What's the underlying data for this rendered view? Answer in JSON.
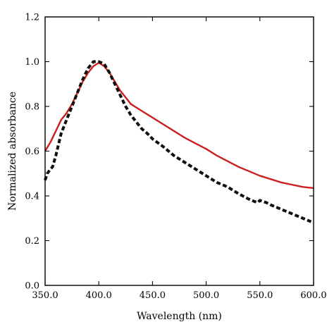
{
  "chart_data": {
    "type": "line",
    "title": "",
    "xlabel": "Wavelength (nm)",
    "ylabel": "Normalized absorbance",
    "xlim": [
      350,
      600
    ],
    "ylim": [
      0,
      1.2
    ],
    "x_ticks": [
      350,
      400,
      450,
      500,
      550,
      600
    ],
    "x_tick_labels": [
      "350.0",
      "400.0",
      "450.0",
      "500.0",
      "550.0",
      "600.0"
    ],
    "y_ticks": [
      0,
      0.2,
      0.4,
      0.6,
      0.8,
      1.0,
      1.2
    ],
    "y_tick_labels": [
      "0.0",
      "0.2",
      "0.4",
      "0.6",
      "0.8",
      "1.0",
      "1.2"
    ],
    "grid": false,
    "legend": "none",
    "series": [
      {
        "color": "#cc1f1f",
        "line_style": "solid",
        "x": [
          350,
          355,
          360,
          365,
          370,
          375,
          380,
          385,
          390,
          395,
          400,
          405,
          410,
          415,
          420,
          425,
          430,
          435,
          440,
          445,
          450,
          460,
          470,
          480,
          490,
          500,
          510,
          520,
          530,
          540,
          550,
          560,
          570,
          580,
          590,
          600
        ],
        "y": [
          0.6,
          0.64,
          0.69,
          0.74,
          0.77,
          0.81,
          0.86,
          0.91,
          0.95,
          0.98,
          0.995,
          0.98,
          0.95,
          0.91,
          0.87,
          0.84,
          0.81,
          0.795,
          0.78,
          0.765,
          0.75,
          0.72,
          0.69,
          0.66,
          0.635,
          0.61,
          0.58,
          0.555,
          0.53,
          0.51,
          0.49,
          0.475,
          0.46,
          0.45,
          0.44,
          0.435
        ]
      },
      {
        "color": "#111111",
        "line_style": "dashed",
        "x": [
          350,
          352,
          355,
          357,
          360,
          363,
          365,
          370,
          375,
          380,
          385,
          390,
          395,
          400,
          405,
          410,
          415,
          420,
          425,
          430,
          435,
          440,
          445,
          450,
          460,
          470,
          480,
          490,
          500,
          510,
          520,
          530,
          540,
          545,
          548,
          550,
          553,
          556,
          560,
          570,
          580,
          590,
          600
        ],
        "y": [
          0.47,
          0.5,
          0.52,
          0.53,
          0.58,
          0.64,
          0.68,
          0.74,
          0.8,
          0.86,
          0.92,
          0.97,
          1.0,
          1.0,
          0.99,
          0.95,
          0.9,
          0.85,
          0.8,
          0.76,
          0.73,
          0.7,
          0.68,
          0.655,
          0.62,
          0.58,
          0.55,
          0.52,
          0.49,
          0.46,
          0.44,
          0.41,
          0.385,
          0.375,
          0.37,
          0.38,
          0.375,
          0.37,
          0.36,
          0.34,
          0.32,
          0.3,
          0.28
        ]
      }
    ]
  }
}
